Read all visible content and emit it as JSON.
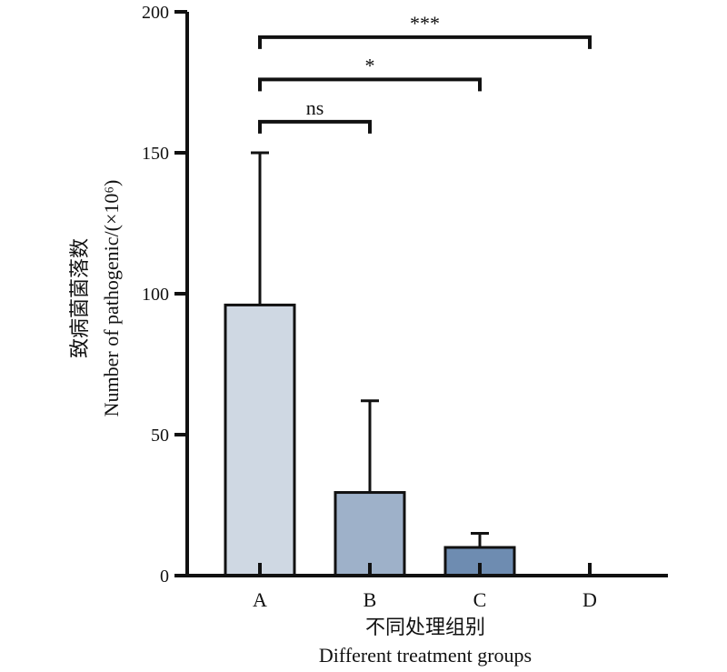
{
  "chart_data": {
    "type": "bar",
    "categories": [
      "A",
      "B",
      "C",
      "D"
    ],
    "values": [
      96,
      29.5,
      10,
      0
    ],
    "error_plus": [
      54,
      32.5,
      5,
      0
    ],
    "bar_colors": [
      "#cfd8e3",
      "#9eb1c9",
      "#6e8cb1",
      "#3f6a9c"
    ],
    "xlabel_cn": "不同处理组别",
    "xlabel_en": "Different treatment groups",
    "ylabel_cn": "致病菌菌落数",
    "ylabel_en": "Number of pathogenic/(×10⁶)",
    "ylim": [
      0,
      200
    ],
    "yticks": [
      0,
      50,
      100,
      150,
      200
    ],
    "grid": false,
    "significance": [
      {
        "from": "A",
        "to": "B",
        "label": "ns",
        "y": 161
      },
      {
        "from": "A",
        "to": "C",
        "label": "*",
        "y": 176
      },
      {
        "from": "A",
        "to": "D",
        "label": "***",
        "y": 191
      }
    ]
  }
}
